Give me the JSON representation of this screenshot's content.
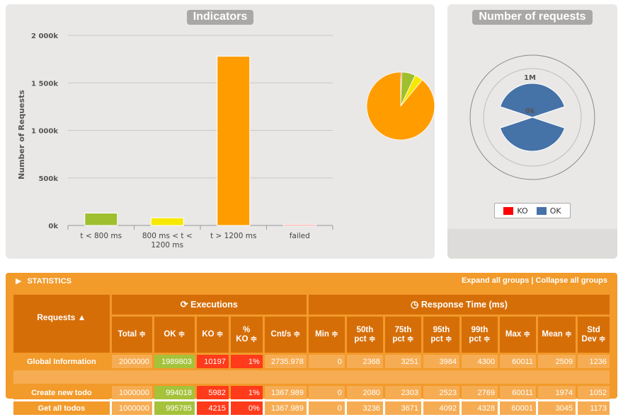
{
  "indicators": {
    "title": "Indicators",
    "chart_data": {
      "type": "bar",
      "ylabel": "Number of Requests",
      "ylim": [
        0,
        2000000
      ],
      "y_ticks": [
        {
          "value": 0,
          "label": "0k"
        },
        {
          "value": 500000,
          "label": "500k"
        },
        {
          "value": 1000000,
          "label": "1 000k"
        },
        {
          "value": 1500000,
          "label": "1 500k"
        },
        {
          "value": 2000000,
          "label": "2 000k"
        }
      ],
      "categories": [
        "t < 800 ms",
        "800 ms < t < 1200 ms",
        "t > 1200 ms",
        "failed"
      ],
      "category_lines": [
        [
          "t < 800 ms"
        ],
        [
          "800 ms < t <",
          "1200 ms"
        ],
        [
          "t > 1200 ms"
        ],
        [
          "failed"
        ]
      ],
      "values": [
        130000,
        80000,
        1780000,
        10197
      ],
      "colors": [
        "#9fbf2e",
        "#f7e800",
        "#ff9d00",
        "#ff0000"
      ],
      "grid": true
    },
    "pie_data": {
      "type": "pie",
      "values": [
        130000,
        80000,
        1780000,
        10197
      ],
      "colors": [
        "#9fbf2e",
        "#f7e800",
        "#ff9d00",
        "#ff0000"
      ]
    }
  },
  "requests": {
    "title": "Number of requests",
    "chart_data": {
      "type": "pie",
      "labels": [
        "1M",
        "0k"
      ],
      "legend": [
        {
          "name": "KO",
          "color": "#ff0000"
        },
        {
          "name": "OK",
          "color": "#4572a7"
        }
      ]
    }
  },
  "statistics": {
    "title": "STATISTICS",
    "expand_label": "Expand all groups",
    "separator": " | ",
    "collapse_label": "Collapse all groups",
    "executions_label": "Executions",
    "response_time_label": "Response Time (ms)",
    "requests_header": "Requests ▲",
    "columns": {
      "total": "Total ≑",
      "ok": "OK ≑",
      "ko": "KO ≑",
      "pct_ko_1": "%",
      "pct_ko_2": "KO ≑",
      "cnts": "Cnt/s ≑",
      "min": "Min ≑",
      "p50_1": "50th",
      "p50_2": "pct ≑",
      "p75_1": "75th",
      "p75_2": "pct ≑",
      "p95_1": "95th",
      "p95_2": "pct ≑",
      "p99_1": "99th",
      "p99_2": "pct ≑",
      "max": "Max ≑",
      "mean": "Mean ≑",
      "std_1": "Std",
      "std_2": "Dev ≑"
    },
    "rows": [
      {
        "name": "Global Information",
        "total": "2000000",
        "ok": "1989803",
        "ko": "10197",
        "pct_ko": "1%",
        "cnts": "2735.978",
        "min": "0",
        "p50": "2368",
        "p75": "3251",
        "p95": "3984",
        "p99": "4300",
        "max": "60011",
        "mean": "2509",
        "std": "1236"
      },
      {
        "name": "Create new todo",
        "total": "1000000",
        "ok": "994018",
        "ko": "5982",
        "pct_ko": "1%",
        "cnts": "1367.989",
        "min": "0",
        "p50": "2080",
        "p75": "2303",
        "p95": "2523",
        "p99": "2769",
        "max": "60011",
        "mean": "1974",
        "std": "1052"
      },
      {
        "name": "Get all todos",
        "total": "1000000",
        "ok": "995785",
        "ko": "4215",
        "pct_ko": "0%",
        "cnts": "1367.989",
        "min": "0",
        "p50": "3236",
        "p75": "3671",
        "p95": "4092",
        "p99": "4328",
        "max": "60001",
        "mean": "3045",
        "std": "1173"
      }
    ]
  }
}
